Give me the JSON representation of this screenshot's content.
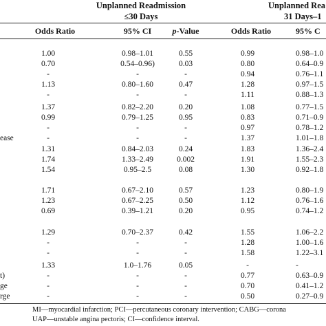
{
  "group_headers": {
    "g1_line1": "Unplanned Readmission",
    "g1_line2": "≤30 Days",
    "g2_line1": "Unplanned Rea",
    "g2_line2": "31 Days–1"
  },
  "column_headers": {
    "or1": "Odds Ratio",
    "ci1": "95% CI",
    "p_italic": "p",
    "p_rest": "-Value",
    "or2": "Odds Ratio",
    "ci2": "95% C"
  },
  "rows": [
    {
      "label": "",
      "or1": "1.00",
      "ci1": "0.98–1.01",
      "p": "0.55",
      "or2": "0.99",
      "ci2": "0.98–1.0"
    },
    {
      "label": "",
      "or1": "0.70",
      "ci1": "0.54–0.96)",
      "p": "0.03",
      "or2": "0.80",
      "ci2": "0.64–0.9"
    },
    {
      "label": "",
      "or1": "-",
      "ci1": "-",
      "p": "-",
      "or2": "0.94",
      "ci2": "0.76–1.1"
    },
    {
      "label": "",
      "or1": "1.13",
      "ci1": "0.80–1.60",
      "p": "0.47",
      "or2": "1.28",
      "ci2": "0.97–1.5"
    },
    {
      "label": "",
      "or1": "-",
      "ci1": "-",
      "p": "-",
      "or2": "1.11",
      "ci2": "0.88–1.3"
    },
    {
      "label": "",
      "or1": "1.37",
      "ci1": "0.82–2.20",
      "p": "0.20",
      "or2": "1.08",
      "ci2": "0.77–1.5"
    },
    {
      "label": "",
      "or1": "0.99",
      "ci1": "0.79–1.25",
      "p": "0.95",
      "or2": "0.83",
      "ci2": "0.71–0.9"
    },
    {
      "label": "",
      "or1": "-",
      "ci1": "-",
      "p": "-",
      "or2": "0.97",
      "ci2": "0.78–1.2"
    },
    {
      "label": "ease",
      "or1": "-",
      "ci1": "-",
      "p": "-",
      "or2": "1.37",
      "ci2": "1.01–1.8"
    },
    {
      "label": "",
      "or1": "1.31",
      "ci1": "0.84–2.03",
      "p": "0.24",
      "or2": "1.83",
      "ci2": "1.36–2.4"
    },
    {
      "label": "",
      "or1": "1.74",
      "ci1": "1.33–2.49",
      "p": "0.002",
      "or2": "1.91",
      "ci2": "1.55–2.3"
    },
    {
      "label": "",
      "or1": "1.54",
      "ci1": "0.95–2.5",
      "p": "0.08",
      "or2": "1.30",
      "ci2": "0.92–1.8"
    },
    {
      "label": "",
      "or1": "1.71",
      "ci1": "0.67–2.10",
      "p": "0.57",
      "or2": "1.23",
      "ci2": "0.80–1.9"
    },
    {
      "label": "",
      "or1": "1.23",
      "ci1": "0.67–2.25",
      "p": "0.50",
      "or2": "1.12",
      "ci2": "0.76–1.6"
    },
    {
      "label": "",
      "or1": "0.69",
      "ci1": "0.39–1.21",
      "p": "0.20",
      "or2": "0.95",
      "ci2": "0.74–1.2"
    },
    {
      "label": "",
      "or1": "1.29",
      "ci1": "0.70–2.37",
      "p": "0.42",
      "or2": "1.55",
      "ci2": "1.06–2.2"
    },
    {
      "label": "",
      "or1": "-",
      "ci1": "-",
      "p": "-",
      "or2": "1.28",
      "ci2": "1.00–1.6"
    },
    {
      "label": "",
      "or1": "-",
      "ci1": "-",
      "p": "-",
      "or2": "1.58",
      "ci2": "1.22–3.1"
    },
    {
      "label": "",
      "or1": "1.33",
      "ci1": "1.0–1.76",
      "p": "0.05",
      "or2": "-",
      "ci2": "-"
    },
    {
      "label": "t)",
      "or1": "-",
      "ci1": "-",
      "p": "-",
      "or2": "0.77",
      "ci2": "0.63–0.9"
    },
    {
      "label": "ge",
      "or1": "-",
      "ci1": "-",
      "p": "-",
      "or2": "0.70",
      "ci2": "0.41–1.2"
    },
    {
      "label": "rge",
      "or1": "-",
      "ci1": "-",
      "p": "-",
      "or2": "0.50",
      "ci2": "0.27–0.9"
    }
  ],
  "footnotes": {
    "line1": "MI—myocardial infarction; PCI—percutaneous coronary intervention; CABG—corona",
    "line2": "UAP—unstable angina pectoris; CI—confidence interval."
  }
}
